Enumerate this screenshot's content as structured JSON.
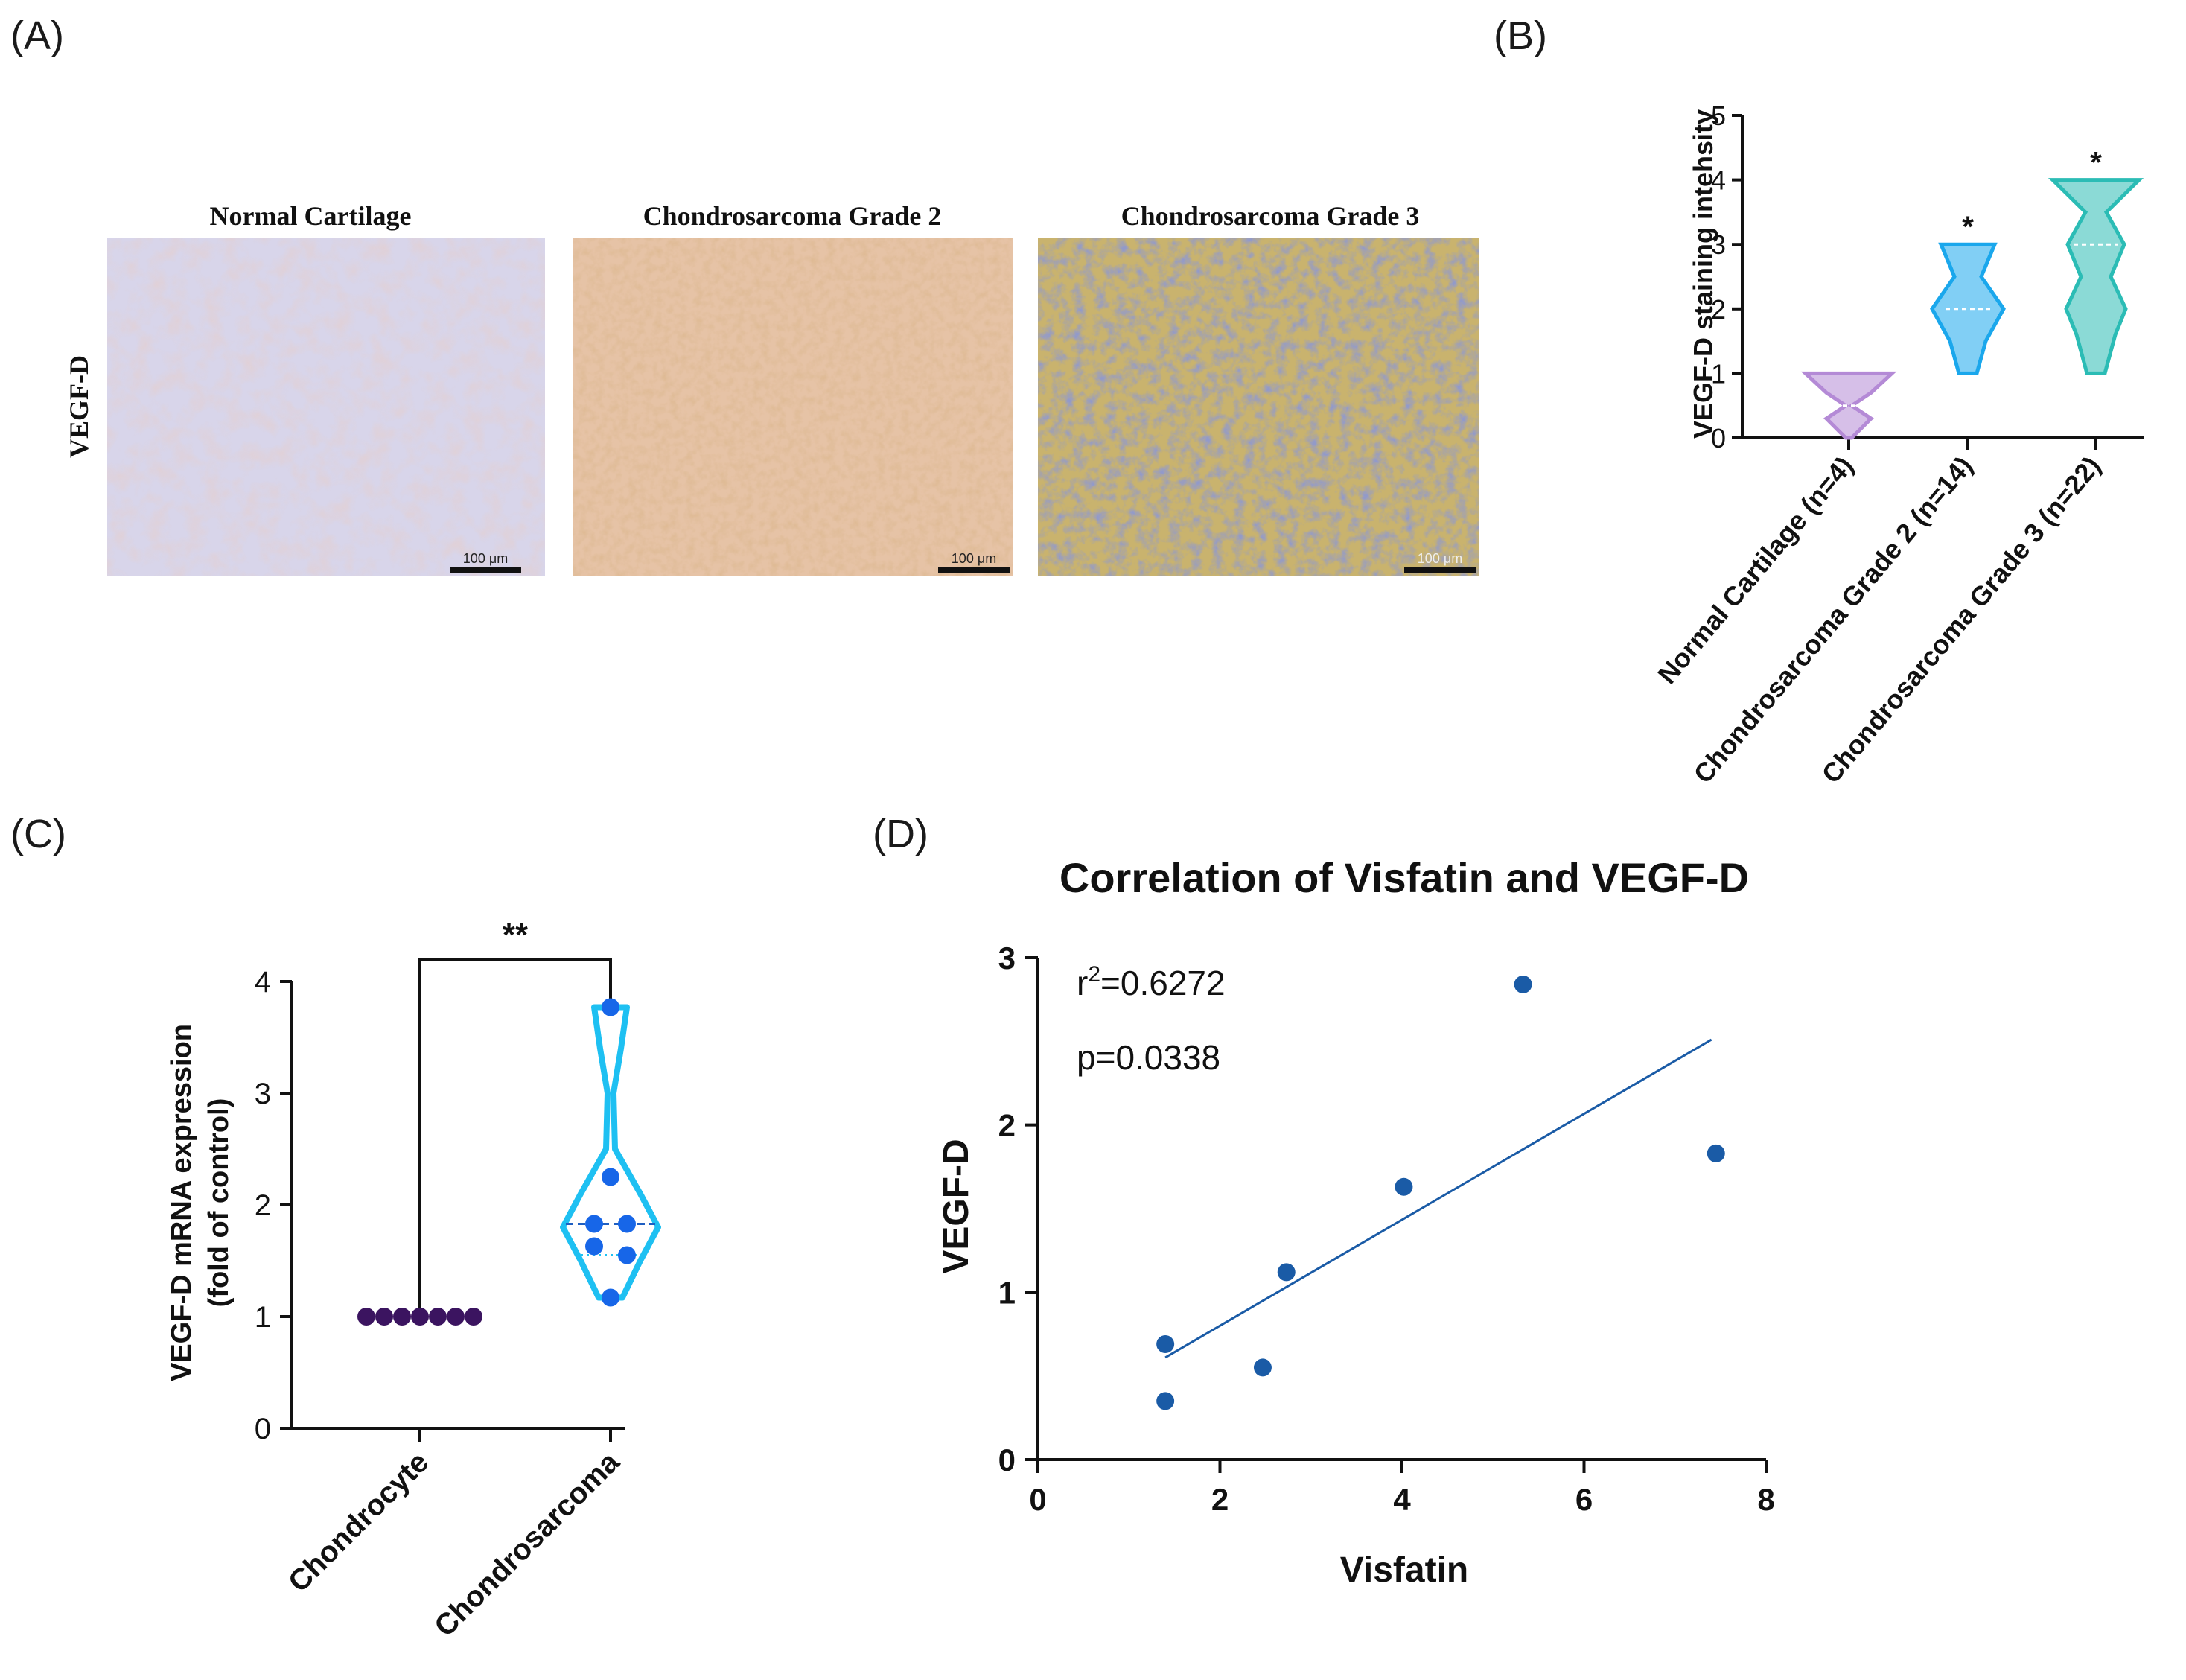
{
  "panel_labels": {
    "a": "(A)",
    "b": "(B)",
    "c": "(C)",
    "d": "(D)"
  },
  "panel_a": {
    "row_label": "VEGF-D",
    "images": [
      {
        "title": "Normal Cartilage",
        "scale_bar": "100 μm"
      },
      {
        "title": "Chondrosarcoma Grade 2",
        "scale_bar": "100 μm"
      },
      {
        "title": "Chondrosarcoma Grade 3",
        "scale_bar": "100 μm"
      }
    ]
  },
  "chart_data": [
    {
      "id": "B",
      "type": "violin",
      "ylabel": "VEGF-D staining intehsity",
      "ylim": [
        0,
        5
      ],
      "yticks": [
        "0",
        "1",
        "2",
        "3",
        "4",
        "5"
      ],
      "categories": [
        "Normal Cartilage (n=4)",
        "Chondrosarcoma Grade 2 (n=14)",
        "Chondrosarcoma Grade 3 (n=22)"
      ],
      "colors": [
        "#b48ad6",
        "#1aa7ec",
        "#2bbcb5"
      ],
      "ranges": [
        [
          0,
          1
        ],
        [
          1,
          3
        ],
        [
          1,
          4
        ]
      ],
      "medians": [
        0.5,
        2,
        3
      ],
      "significance": [
        "",
        "*",
        "*"
      ]
    },
    {
      "id": "C",
      "type": "violin",
      "ylabel_lines": [
        "VEGF-D mRNA expression",
        "(fold of control)"
      ],
      "ylim": [
        0,
        4
      ],
      "yticks": [
        "0",
        "1",
        "2",
        "3",
        "4"
      ],
      "categories": [
        "Chondrocyte",
        "Chondrosarcoma"
      ],
      "chondrocyte_values": [
        1,
        1,
        1,
        1,
        1,
        1,
        1
      ],
      "chondrosarcoma_values": [
        3.77,
        2.25,
        1.83,
        1.83,
        1.63,
        1.55,
        1.17
      ],
      "median": 1.83,
      "significance": "**"
    },
    {
      "id": "D",
      "type": "scatter",
      "title": "Correlation of  Visfatin and VEGF-D",
      "xlabel": "Visfatin",
      "ylabel": "VEGF-D",
      "xlim": [
        0,
        8
      ],
      "ylim": [
        0,
        3
      ],
      "xticks": [
        "0",
        "2",
        "4",
        "6",
        "8"
      ],
      "yticks": [
        "0",
        "1",
        "2",
        "3"
      ],
      "points": [
        [
          1.4,
          0.69
        ],
        [
          1.4,
          0.35
        ],
        [
          2.47,
          0.55
        ],
        [
          2.73,
          1.12
        ],
        [
          4.02,
          1.63
        ],
        [
          5.33,
          2.84
        ],
        [
          7.45,
          1.83
        ]
      ],
      "fit_line": [
        [
          1.4,
          0.61
        ],
        [
          7.4,
          2.51
        ]
      ],
      "stat_r2_prefix": "r",
      "stat_r2_sup": "2",
      "stat_r2_value": "=0.6272",
      "stat_p": "p=0.0338",
      "color": "#1a5ba6"
    }
  ]
}
